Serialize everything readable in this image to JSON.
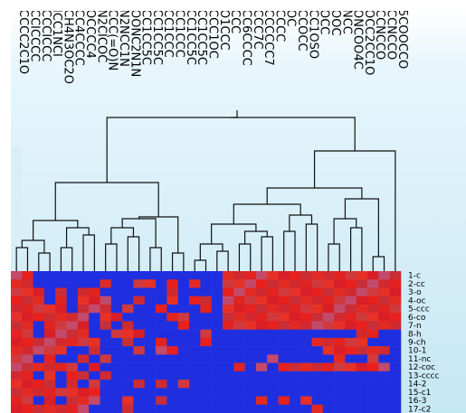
{
  "heatmap": {
    "palette": {
      "high": "#e8201e",
      "low": "#1f2fe0",
      "mid": "#c34a6a"
    },
    "row_labels": [
      "1-c",
      "2-cc",
      "3-o",
      "4-oc",
      "5-ccc",
      "6-co",
      "7-n",
      "8-h",
      "9-ch",
      "10-1",
      "11-nc",
      "12-coc",
      "13-cccc",
      "14-2",
      "15-c1",
      "16-3",
      "17-c2"
    ],
    "col_labels": [
      "CCCC2C1O",
      "CCICCCC",
      "CCCICCC",
      "ICC1NCI",
      "CH4N3OC2O",
      "CC4CCCC",
      "OCCCC4",
      "N2CICOC",
      "CCC(=O)N",
      "N2NCC1N",
      "OONC2N1N",
      "CC1CC5C",
      "CC1CC5C",
      "CC1CCC",
      "CC1CCC",
      "CC1CC5C",
      "CC1CC5C",
      "CCC1OC",
      "O1CCC",
      "CCC",
      "CC6CCCC",
      "CCC7C",
      "CCCCCC7",
      "CCCC",
      "OC",
      "CCOCC",
      "CC1OSO",
      "OCC",
      "OOC",
      "NCC",
      "ONCOO4C",
      "OCC2CC1O",
      "CCNCCO",
      "CCNCCO",
      "5COOCCO"
    ]
  }
}
